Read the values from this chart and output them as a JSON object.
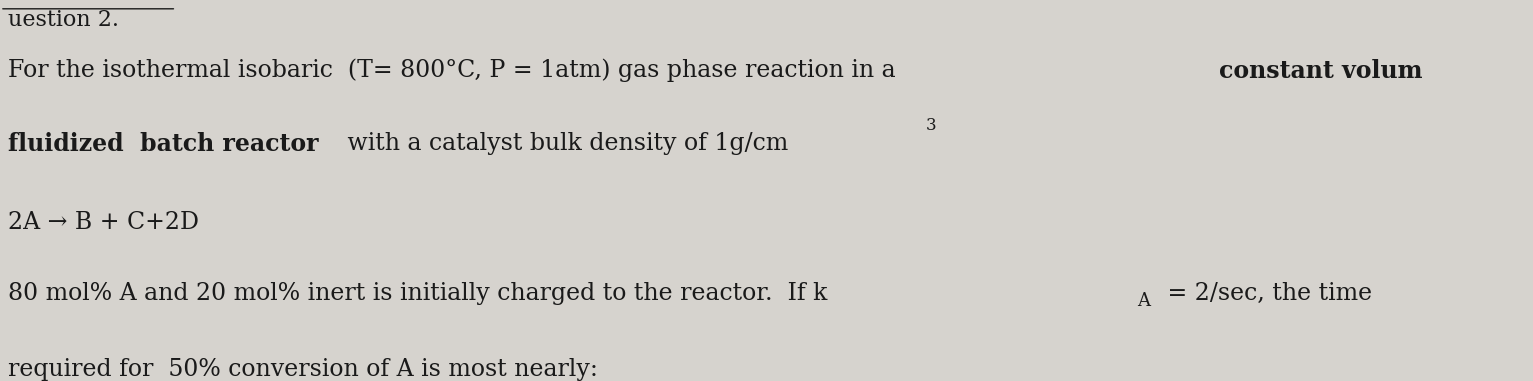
{
  "background_color": "#d6d3ce",
  "header_text": "uestion 2.",
  "header_underline": true,
  "line1_parts": [
    {
      "text": "For the isothermal isobaric  (T= 800°C, P = 1atm) gas phase reaction in a ",
      "bold": false
    },
    {
      "text": "constant volum",
      "bold": true
    }
  ],
  "line2_parts": [
    {
      "text": "fluidized  batch reactor",
      "bold": true
    },
    {
      "text": " with a catalyst bulk density of 1g/cm",
      "bold": false
    },
    {
      "text": "3",
      "bold": false,
      "superscript": true
    }
  ],
  "line3": "2A → B + C+2D",
  "line4_parts": [
    {
      "text": "80 mol% A and 20 mol% inert is initially charged to the reactor.  If k",
      "bold": false
    },
    {
      "text": "A",
      "bold": false,
      "subscript": true
    },
    {
      "text": " = 2/sec, the time",
      "bold": false
    }
  ],
  "line5": "required for  50% conversion of A is most nearly:",
  "font_size_main": 17,
  "font_size_header": 16,
  "text_color": "#1a1a1a",
  "fig_width": 15.33,
  "fig_height": 3.81,
  "dpi": 100
}
